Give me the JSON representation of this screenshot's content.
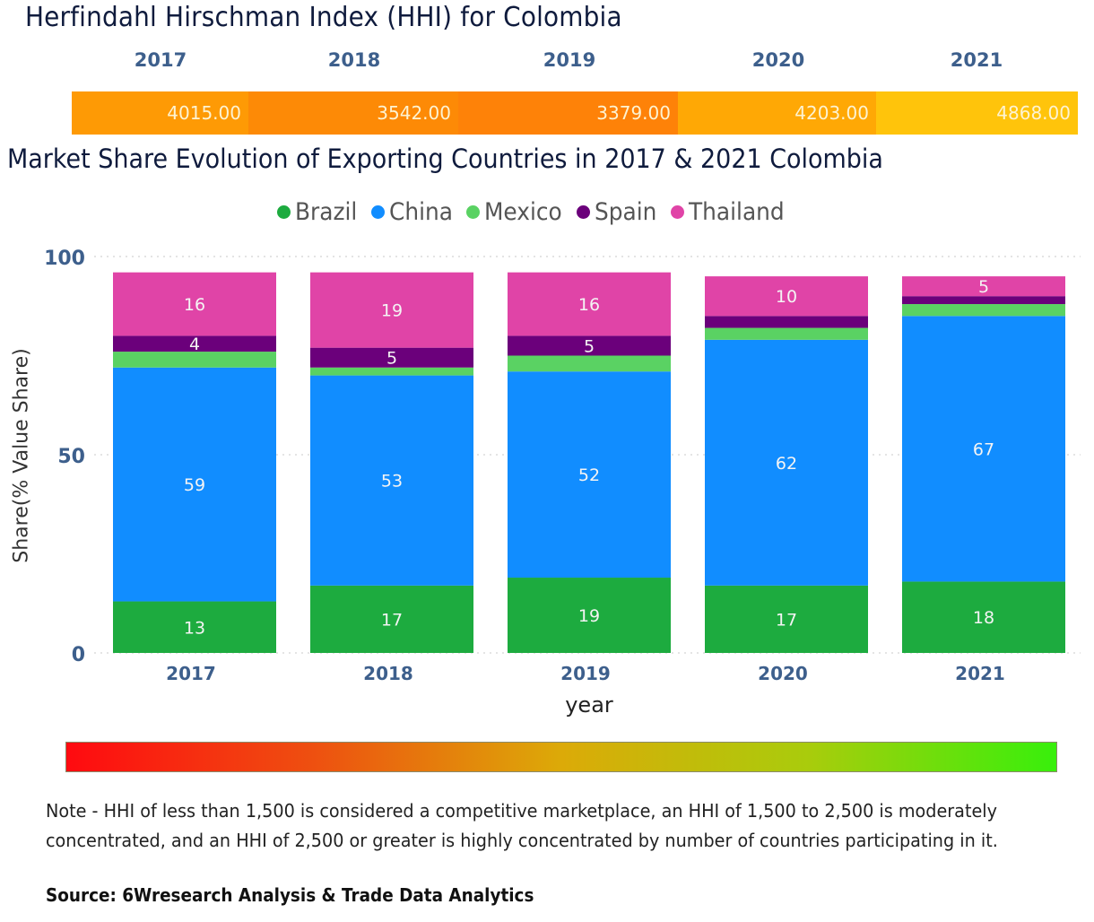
{
  "hhi": {
    "title": "Herfindahl Hirschman Index (HHI) for Colombia",
    "years": [
      "2017",
      "2018",
      "2019",
      "2020",
      "2021"
    ],
    "values": [
      "4015.00",
      "3542.00",
      "3379.00",
      "4203.00",
      "4868.00"
    ],
    "colors": [
      "#fe9a05",
      "#fd8a06",
      "#fe8208",
      "#ffa805",
      "#ffc40b"
    ]
  },
  "chart_data": {
    "type": "bar",
    "stacked": true,
    "title": "Market Share Evolution of Exporting Countries in 2017 & 2021 Colombia",
    "xlabel": "year",
    "ylabel": "Share(% Value Share)",
    "ylim": [
      0,
      100
    ],
    "yticks": [
      "0",
      "50",
      "100"
    ],
    "grid": true,
    "legend_position": "top-center",
    "categories": [
      "2017",
      "2018",
      "2019",
      "2020",
      "2021"
    ],
    "series": [
      {
        "name": "Brazil",
        "color": "#1dab3f",
        "values": [
          13,
          17,
          19,
          17,
          18
        ],
        "labels": [
          "13",
          "17",
          "19",
          "17",
          "18"
        ]
      },
      {
        "name": "China",
        "color": "#118dff",
        "values": [
          59,
          53,
          52,
          62,
          67
        ],
        "labels": [
          "59",
          "53",
          "52",
          "62",
          "67"
        ]
      },
      {
        "name": "Mexico",
        "color": "#5ad263",
        "values": [
          4,
          2,
          4,
          3,
          3
        ],
        "labels": [
          "",
          "",
          "",
          "",
          ""
        ]
      },
      {
        "name": "Spain",
        "color": "#6b007b",
        "values": [
          4,
          5,
          5,
          3,
          2
        ],
        "labels": [
          "4",
          "5",
          "5",
          "",
          ""
        ]
      },
      {
        "name": "Thailand",
        "color": "#e044a7",
        "values": [
          16,
          19,
          16,
          10,
          5
        ],
        "labels": [
          "16",
          "19",
          "16",
          "10",
          "5"
        ]
      }
    ]
  },
  "gradient_scale": {
    "low_color": "#ff0a10",
    "high_color": "#38ef0c"
  },
  "footer": {
    "note": "Note - HHI of less than 1,500 is considered a competitive marketplace, an HHI of 1,500 to 2,500 is moderately concentrated, and an HHI of 2,500 or greater is highly concentrated by number of countries participating in it.",
    "source": "Source: 6Wresearch Analysis & Trade Data Analytics"
  }
}
